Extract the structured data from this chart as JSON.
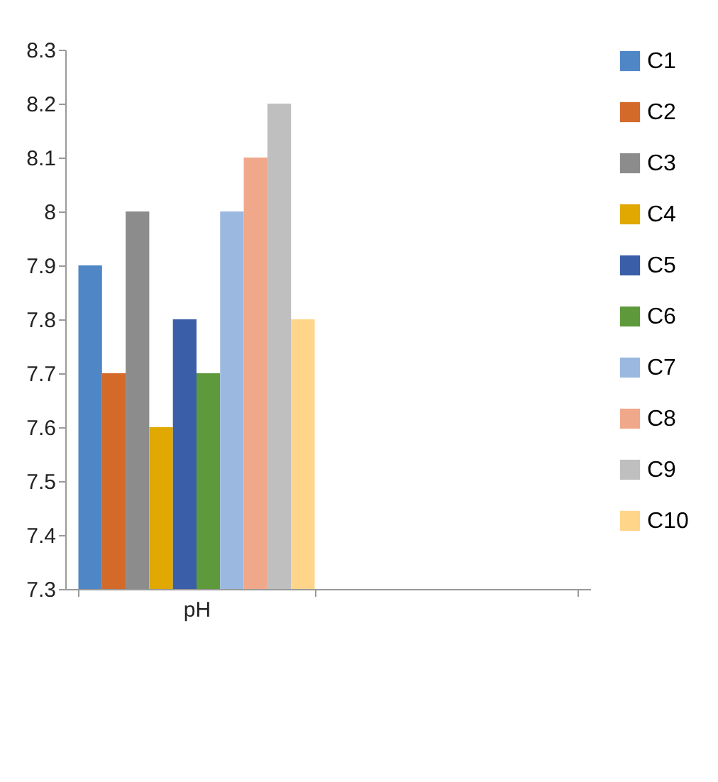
{
  "chart_data": {
    "type": "bar",
    "categories": [
      "pH",
      null
    ],
    "series": [
      {
        "name": "C1",
        "color": "#4f86c6",
        "values": [
          7.9,
          null
        ]
      },
      {
        "name": "C2",
        "color": "#d46a2a",
        "values": [
          7.7,
          null
        ]
      },
      {
        "name": "C3",
        "color": "#8c8c8c",
        "values": [
          8.0,
          null
        ]
      },
      {
        "name": "C4",
        "color": "#e0a800",
        "values": [
          7.6,
          null
        ]
      },
      {
        "name": "C5",
        "color": "#3a5ea8",
        "values": [
          7.8,
          null
        ]
      },
      {
        "name": "C6",
        "color": "#5e9a3c",
        "values": [
          7.7,
          null
        ]
      },
      {
        "name": "C7",
        "color": "#9ab8e0",
        "values": [
          8.0,
          null
        ]
      },
      {
        "name": "C8",
        "color": "#f0a88a",
        "values": [
          8.1,
          null
        ]
      },
      {
        "name": "C9",
        "color": "#bfbfbf",
        "values": [
          8.2,
          null
        ]
      },
      {
        "name": "C10",
        "color": "#ffd58a",
        "values": [
          7.8,
          null
        ]
      }
    ],
    "ylim": [
      7.3,
      8.3
    ],
    "yticks": [
      7.3,
      7.4,
      7.5,
      7.6,
      7.7,
      7.8,
      7.9,
      8,
      8.1,
      8.2,
      8.3
    ],
    "grid": false,
    "legend": "right"
  }
}
